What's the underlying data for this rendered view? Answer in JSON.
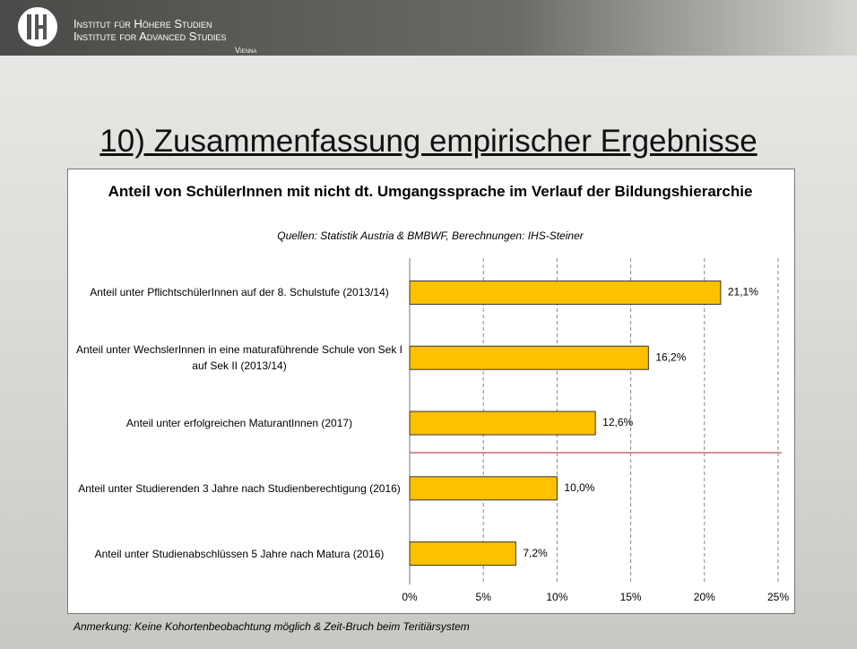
{
  "header": {
    "line1": "Institut für Höhere Studien",
    "line2": "Institute for Advanced Studies",
    "line3": "Vienna"
  },
  "slide": {
    "title": "10) Zusammenfassung empirischer Ergebnisse",
    "note": "Anmerkung: Keine Kohortenbeobachtung möglich & Zeit-Bruch beim Teritiärsystem"
  },
  "chart_data": {
    "type": "barh",
    "title": "Anteil von SchülerInnen mit nicht dt. Umgangssprache im Verlauf der Bildungshierarchie",
    "subtitle": "Quellen: Statistik Austria & BMBWF, Berechnungen: IHS-Steiner",
    "categories": [
      "Anteil unter PflichtschülerInnen auf der 8. Schulstufe (2013/14)",
      "Anteil unter WechslerInnen in eine maturaführende Schule von Sek I auf Sek II (2013/14)",
      "Anteil unter erfolgreichen MaturantInnen (2017)",
      "Anteil unter Studierenden 3 Jahre nach Studienberechtigung (2016)",
      "Anteil unter Studienabschlüssen 5 Jahre nach Matura (2016)"
    ],
    "values": [
      21.1,
      16.2,
      12.6,
      10.0,
      7.2
    ],
    "value_labels": [
      "21,1%",
      "16,2%",
      "12,6%",
      "10,0%",
      "7,2%"
    ],
    "color": "#ffc000",
    "xlim": [
      0,
      25
    ],
    "xticks": [
      {
        "value": 0,
        "label": "0%"
      },
      {
        "value": 5,
        "label": "5%"
      },
      {
        "value": 10,
        "label": "10%"
      },
      {
        "value": 15,
        "label": "15%"
      },
      {
        "value": 20,
        "label": "20%"
      },
      {
        "value": 25,
        "label": "25%"
      }
    ],
    "grid": true
  }
}
